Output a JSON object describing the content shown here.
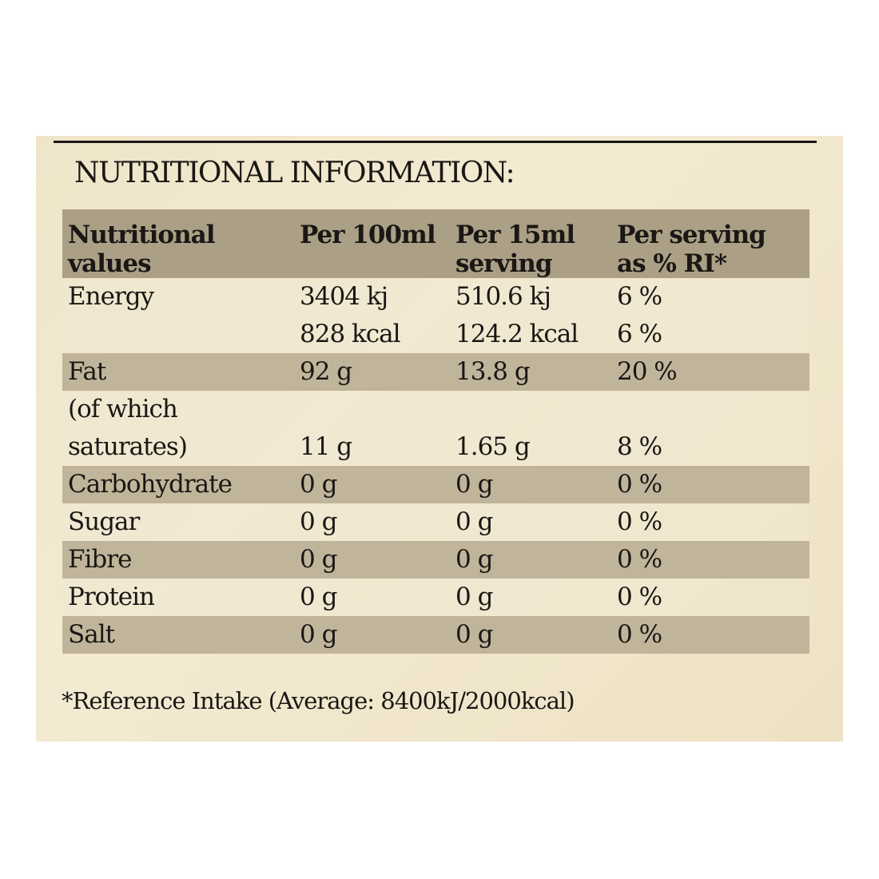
{
  "title": "NUTRITIONAL INFORMATION:",
  "colors": {
    "panel": "#efe5c9",
    "header_row": "#ab9f86",
    "shaded_row": "#c0b59b",
    "text": "#1a1714"
  },
  "headers": [
    "Nutritional values",
    "Per 100ml",
    "Per 15ml serving",
    "Per serving as % RI*"
  ],
  "rows": [
    {
      "name": "Energy",
      "per100": "3404 kj",
      "per15": "510.6 kj",
      "ri": "6 %"
    },
    {
      "name": "",
      "per100": "828 kcal",
      "per15": "124.2 kcal",
      "ri": "6 %"
    },
    {
      "name": "Fat",
      "per100": "92 g",
      "per15": "13.8 g",
      "ri": "20 %"
    },
    {
      "name": "(of which",
      "per100": "",
      "per15": "",
      "ri": ""
    },
    {
      "name": "saturates)",
      "per100": "11 g",
      "per15": "1.65 g",
      "ri": "8 %"
    },
    {
      "name": "Carbohydrate",
      "per100": "0 g",
      "per15": "0 g",
      "ri": "0 %"
    },
    {
      "name": "Sugar",
      "per100": "0 g",
      "per15": "0 g",
      "ri": "0 %"
    },
    {
      "name": "Fibre",
      "per100": "0 g",
      "per15": "0 g",
      "ri": "0 %"
    },
    {
      "name": "Protein",
      "per100": "0 g",
      "per15": "0 g",
      "ri": "0 %"
    },
    {
      "name": "Salt",
      "per100": "0 g",
      "per15": "0 g",
      "ri": "0 %"
    }
  ],
  "footnote": "*Reference Intake (Average: 8400kJ/2000kcal)"
}
